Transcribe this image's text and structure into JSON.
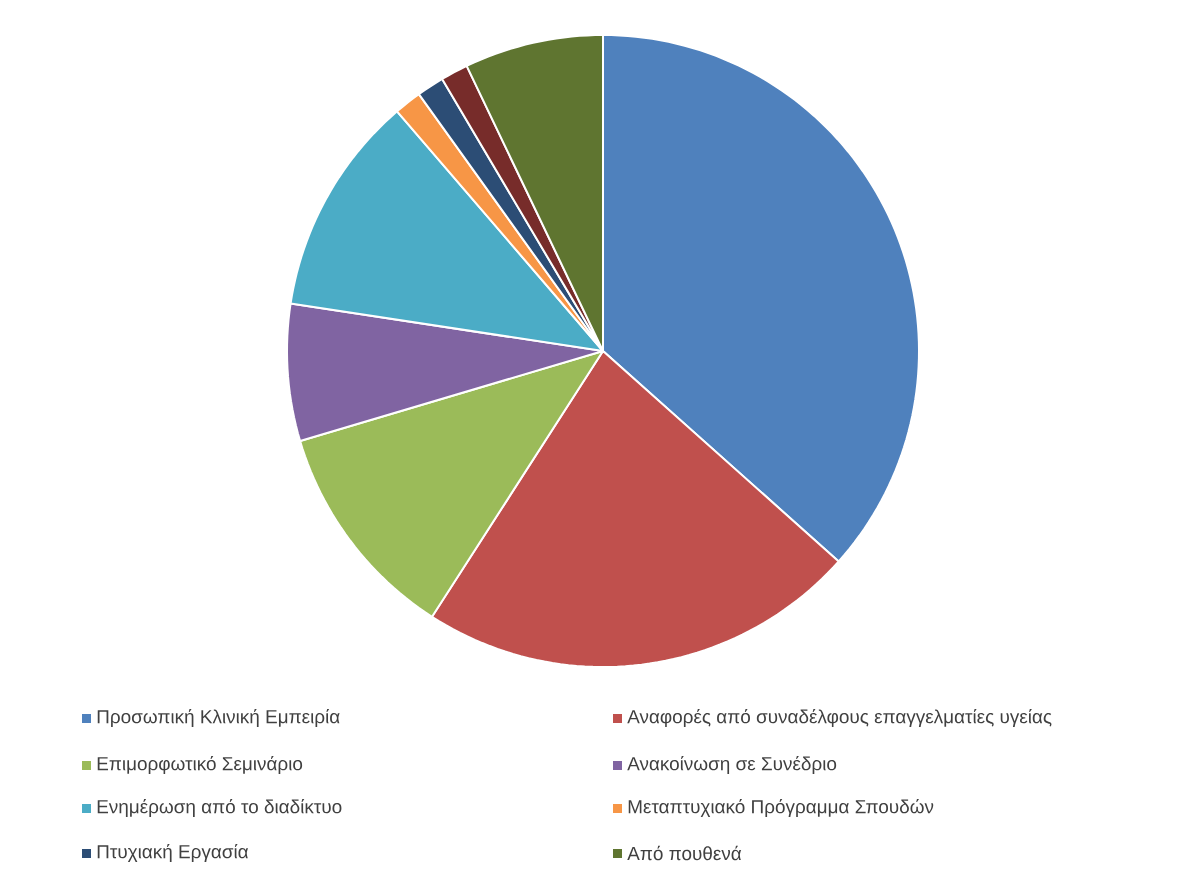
{
  "chart_data": {
    "type": "pie",
    "categories": [
      "Προσωπική Κλινική Εμπειρία",
      "Αναφορές από συναδέλφους επαγγελματίες υγείας",
      "Επιμορφωτικό Σεμινάριο",
      "Ανακοίνωση σε Συνέδριο",
      "Ενημέρωση από το διαδίκτυο",
      "Μεταπτυχιακό Πρόγραμμα Σπουδών",
      "Πτυχιακή Εργασία",
      null,
      "Από πουθενά"
    ],
    "values": [
      36.6,
      22.5,
      11.3,
      7.0,
      11.3,
      1.4,
      1.4,
      1.4,
      7.1
    ],
    "colors": [
      "#4f81bd",
      "#c0504d",
      "#9bbb59",
      "#8064a2",
      "#4bacc6",
      "#f79646",
      "#2c4d75",
      "#772c2a",
      "#5f7530"
    ],
    "legend": "bottom"
  }
}
